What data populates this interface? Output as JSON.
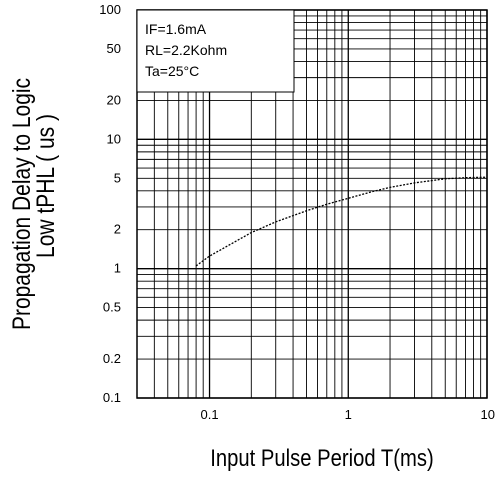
{
  "chart_data": {
    "type": "line",
    "title": "",
    "xlabel": "Input Pulse Period T(ms)",
    "ylabel_lines": [
      "Propagation Delay to Logic",
      "Low tPHL ( us )"
    ],
    "x_scale": "log",
    "y_scale": "log",
    "xlim": [
      0.03,
      10
    ],
    "ylim": [
      0.1,
      100
    ],
    "x_ticks": [
      {
        "value": 0.1,
        "label": "0.1"
      },
      {
        "value": 1,
        "label": "1"
      },
      {
        "value": 10,
        "label": "10"
      }
    ],
    "y_ticks": [
      {
        "value": 100,
        "label": "100"
      },
      {
        "value": 50,
        "label": "50"
      },
      {
        "value": 20,
        "label": "20"
      },
      {
        "value": 10,
        "label": "10"
      },
      {
        "value": 5,
        "label": "5"
      },
      {
        "value": 2,
        "label": "2"
      },
      {
        "value": 1,
        "label": "1"
      },
      {
        "value": 0.5,
        "label": "0.5"
      },
      {
        "value": 0.2,
        "label": "0.2"
      },
      {
        "value": 0.1,
        "label": "0.1"
      }
    ],
    "grid": true,
    "legend_box": {
      "placement": "top-left",
      "lines": [
        "IF=1.6mA",
        "RL=2.2Kohm",
        "Ta=25°C"
      ]
    },
    "series": [
      {
        "style": "dotted",
        "x": [
          0.08,
          0.1,
          0.15,
          0.2,
          0.3,
          0.5,
          0.7,
          1,
          1.5,
          2,
          3,
          5,
          7,
          10
        ],
        "y": [
          1.05,
          1.25,
          1.6,
          1.9,
          2.3,
          2.8,
          3.15,
          3.5,
          3.95,
          4.25,
          4.6,
          4.95,
          5.05,
          5.1
        ]
      }
    ]
  }
}
